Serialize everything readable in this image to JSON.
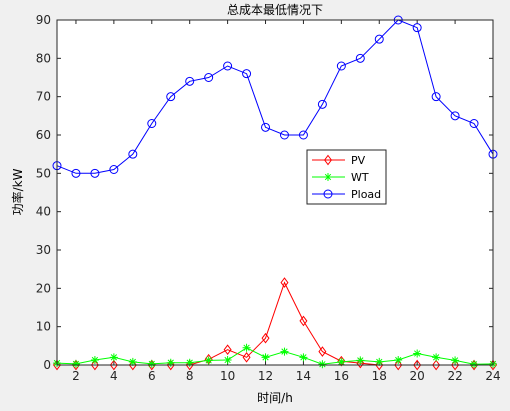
{
  "chart_data": {
    "type": "line",
    "title": "总成本最低情况下",
    "xlabel": "时间/h",
    "ylabel": "功率/kW",
    "xlim": [
      1,
      24
    ],
    "ylim": [
      0,
      90
    ],
    "x_ticks": [
      2,
      4,
      6,
      8,
      10,
      12,
      14,
      16,
      18,
      20,
      22,
      24
    ],
    "y_ticks": [
      0,
      10,
      20,
      30,
      40,
      50,
      60,
      70,
      80,
      90
    ],
    "grid": false,
    "legend_position": "right-center",
    "x": [
      1,
      2,
      3,
      4,
      5,
      6,
      7,
      8,
      9,
      10,
      11,
      12,
      13,
      14,
      15,
      16,
      17,
      18,
      19,
      20,
      21,
      22,
      23,
      24
    ],
    "series": [
      {
        "name": "PV",
        "color": "#ff0000",
        "marker": "diamond",
        "values": [
          0,
          0,
          0,
          0,
          0,
          0,
          0,
          0,
          1.5,
          4,
          2,
          7,
          21.5,
          11.5,
          3.5,
          1,
          0.5,
          0,
          0,
          0,
          0,
          0,
          0,
          0
        ]
      },
      {
        "name": "WT",
        "color": "#00ff00",
        "marker": "star",
        "values": [
          0.5,
          0.3,
          1.3,
          2,
          0.8,
          0.3,
          0.6,
          0.6,
          1.2,
          1.3,
          4.5,
          2,
          3.5,
          2,
          0.2,
          0.8,
          1.2,
          0.8,
          1.3,
          3,
          2,
          1.2,
          0.2,
          0.3
        ]
      },
      {
        "name": "Pload",
        "color": "#0000ff",
        "marker": "circle",
        "values": [
          52,
          50,
          50,
          51,
          55,
          63,
          70,
          74,
          75,
          78,
          76,
          62,
          60,
          60,
          68,
          78,
          80,
          85,
          90,
          88,
          70,
          65,
          63,
          55
        ]
      }
    ]
  }
}
